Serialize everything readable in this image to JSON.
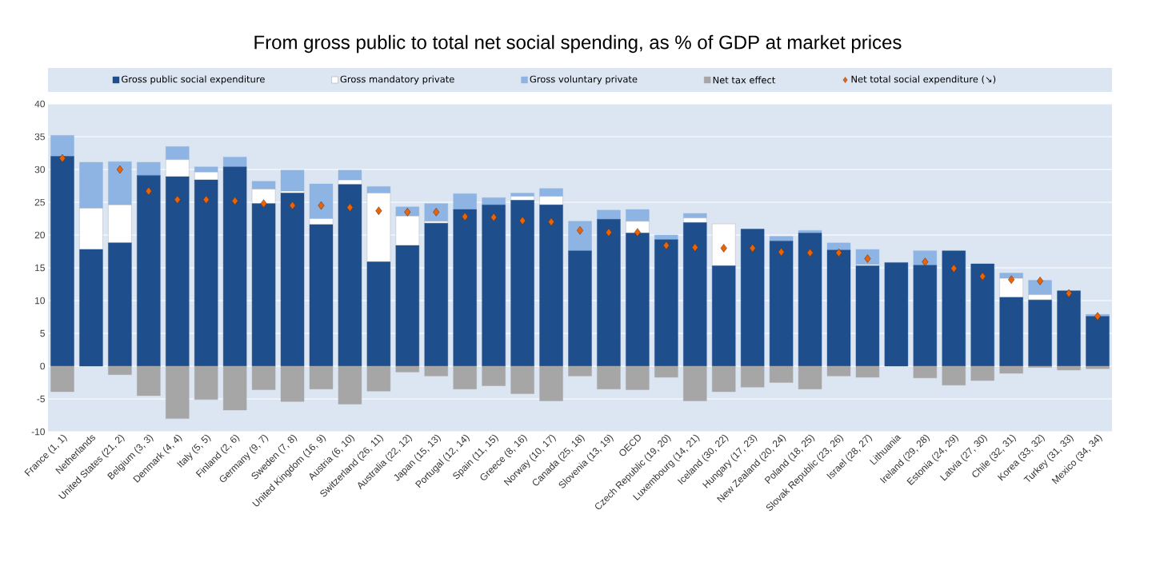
{
  "chart_data": {
    "type": "bar",
    "title": "From gross public to total net social spending, as % of GDP at market prices",
    "categories": [
      "France (1, 1)",
      "Netherlands",
      "United States (21, 2)",
      "Belgium (3, 3)",
      "Denmark (4, 4)",
      "Italy (5, 5)",
      "Finland (2, 6)",
      "Germany (9, 7)",
      "Sweden (7, 8)",
      "United Kingdom (16, 9)",
      "Austria (6, 10)",
      "Switzerland (26, 11)",
      "Australia (22, 12)",
      "Japan (15, 13)",
      "Portugal (12, 14)",
      "Spain (11, 15)",
      "Greece (8, 16)",
      "Norway (10, 17)",
      "Canada (25, 18)",
      "Slovenia (13, 19)",
      "OECD",
      "Czech Republic (19, 20)",
      "Luxembourg (14, 21)",
      "Iceland (30, 22)",
      "Hungary (17, 23)",
      "New Zealand (20, 24)",
      "Poland (18, 25)",
      "Slovak Republic (23, 26)",
      "Israel (28, 27)",
      "Lithuania",
      "Ireland (29, 28)",
      "Estonia (24, 29)",
      "Latvia (27, 30)",
      "Chile (32, 31)",
      "Korea (33, 32)",
      "Turkey (31, 33)",
      "Mexico (34, 34)"
    ],
    "stacked": true,
    "series": [
      {
        "name": "Gross public social expenditure",
        "color": "#1f4e8c",
        "values": [
          32.0,
          17.8,
          18.8,
          29.1,
          28.9,
          28.4,
          30.4,
          24.8,
          26.4,
          21.6,
          27.7,
          15.9,
          18.4,
          21.8,
          23.9,
          24.6,
          25.3,
          24.6,
          17.6,
          22.4,
          20.3,
          19.3,
          21.9,
          15.3,
          20.9,
          19.1,
          20.3,
          17.7,
          15.3,
          15.8,
          15.4,
          17.6,
          15.6,
          10.5,
          10.1,
          11.5,
          7.6
        ]
      },
      {
        "name": "Gross mandatory private",
        "color": "#ffffff",
        "values": [
          0,
          6.3,
          5.8,
          0,
          2.6,
          1.2,
          0,
          2.2,
          0.3,
          0.9,
          0.7,
          10.5,
          4.5,
          0.3,
          0,
          0,
          0.6,
          1.3,
          0,
          0,
          1.8,
          0,
          0.7,
          6.4,
          0,
          0,
          0,
          0,
          0.2,
          0,
          0,
          0,
          0,
          2.9,
          0.8,
          0,
          0
        ]
      },
      {
        "name": "Gross voluntary private",
        "color": "#8eb4e3",
        "values": [
          3.2,
          7.0,
          6.6,
          2.0,
          2.0,
          0.8,
          1.5,
          1.2,
          3.2,
          5.3,
          1.5,
          1.0,
          1.4,
          2.7,
          2.4,
          1.1,
          0.5,
          1.2,
          4.5,
          1.4,
          1.8,
          0.7,
          0.7,
          0,
          0,
          0.7,
          0.4,
          1.1,
          2.3,
          0,
          2.2,
          0,
          0,
          0.8,
          2.2,
          0,
          0.3
        ]
      },
      {
        "name": "Net tax effect",
        "color": "#a6a6a6",
        "values": [
          -3.9,
          0,
          -1.3,
          -4.5,
          -8.0,
          -5.1,
          -6.7,
          -3.6,
          -5.4,
          -3.5,
          -5.8,
          -3.8,
          -0.9,
          -1.5,
          -3.5,
          -3.0,
          -4.2,
          -5.3,
          -1.5,
          -3.5,
          -3.6,
          -1.7,
          -5.3,
          -3.9,
          -3.2,
          -2.5,
          -3.5,
          -1.5,
          -1.7,
          0,
          -1.8,
          -2.9,
          -2.2,
          -1.1,
          -0.2,
          -0.6,
          -0.4
        ]
      },
      {
        "name": "Net total social expenditure (↘)",
        "type": "scatter",
        "color": "#e8630a",
        "values": [
          31.7,
          null,
          30.0,
          26.7,
          25.4,
          25.4,
          25.2,
          24.8,
          24.5,
          24.5,
          24.2,
          23.7,
          23.5,
          23.5,
          22.8,
          22.7,
          22.2,
          22.0,
          20.7,
          20.4,
          20.4,
          18.4,
          18.1,
          18.0,
          18.0,
          17.4,
          17.3,
          17.3,
          16.4,
          null,
          15.9,
          14.9,
          13.7,
          13.2,
          13.0,
          11.1,
          7.6
        ]
      }
    ],
    "ylim": [
      -10,
      40
    ],
    "yticks": [
      -10,
      -5,
      0,
      5,
      10,
      15,
      20,
      25,
      30,
      35,
      40
    ],
    "grid": "y",
    "legend": "top",
    "marker": "diamond"
  }
}
